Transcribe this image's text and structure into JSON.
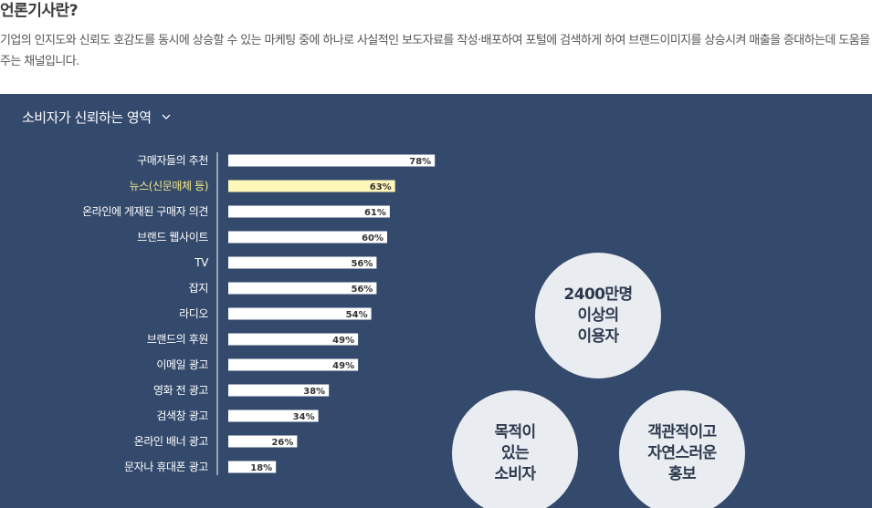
{
  "page": {
    "title": "언론기사란?",
    "intro": "기업의 인지도와 신뢰도 호감도를 동시에 상승할 수 있는 마케팅 중에 하나로 사실적인 보도자료를 작성·배포하여 포털에 검색하게 하여 브랜드이미지를 상승시켜 매출을 증대하는데 도움을 주는 채널입니다."
  },
  "panel": {
    "heading": "소비자가 신뢰하는 영역",
    "chevron_icon": "chevron-down-icon",
    "bg_color": "#344a6c"
  },
  "chart_data": {
    "type": "bar",
    "orientation": "horizontal",
    "title": "소비자가 신뢰하는 영역",
    "categories": [
      "구매자들의 추천",
      "뉴스(신문매체 등)",
      "온라인에 게재된 구매자 의견",
      "브랜드 웹사이트",
      "TV",
      "잡지",
      "라디오",
      "브랜드의 후원",
      "이메일 광고",
      "영화 전 광고",
      "검색창 광고",
      "온라인 배너 광고",
      "문자나 휴대폰 광고"
    ],
    "values": [
      78,
      63,
      61,
      60,
      56,
      56,
      54,
      49,
      49,
      38,
      34,
      26,
      18
    ],
    "value_labels": [
      "78%",
      "63%",
      "61%",
      "60%",
      "56%",
      "56%",
      "54%",
      "49%",
      "49%",
      "38%",
      "34%",
      "26%",
      "18%"
    ],
    "highlight_index": 1,
    "colors": {
      "bar": "#ffffff",
      "highlight": "#fff7b8",
      "label": "#ffffff",
      "highlight_label": "#f4e98a"
    },
    "xlim": [
      0,
      100
    ]
  },
  "bubbles": [
    {
      "text": "2400만명\n이상의\n이용자"
    },
    {
      "text": "목적이\n있는\n소비자"
    },
    {
      "text": "객관적이고\n자연스러운\n홍보"
    }
  ]
}
